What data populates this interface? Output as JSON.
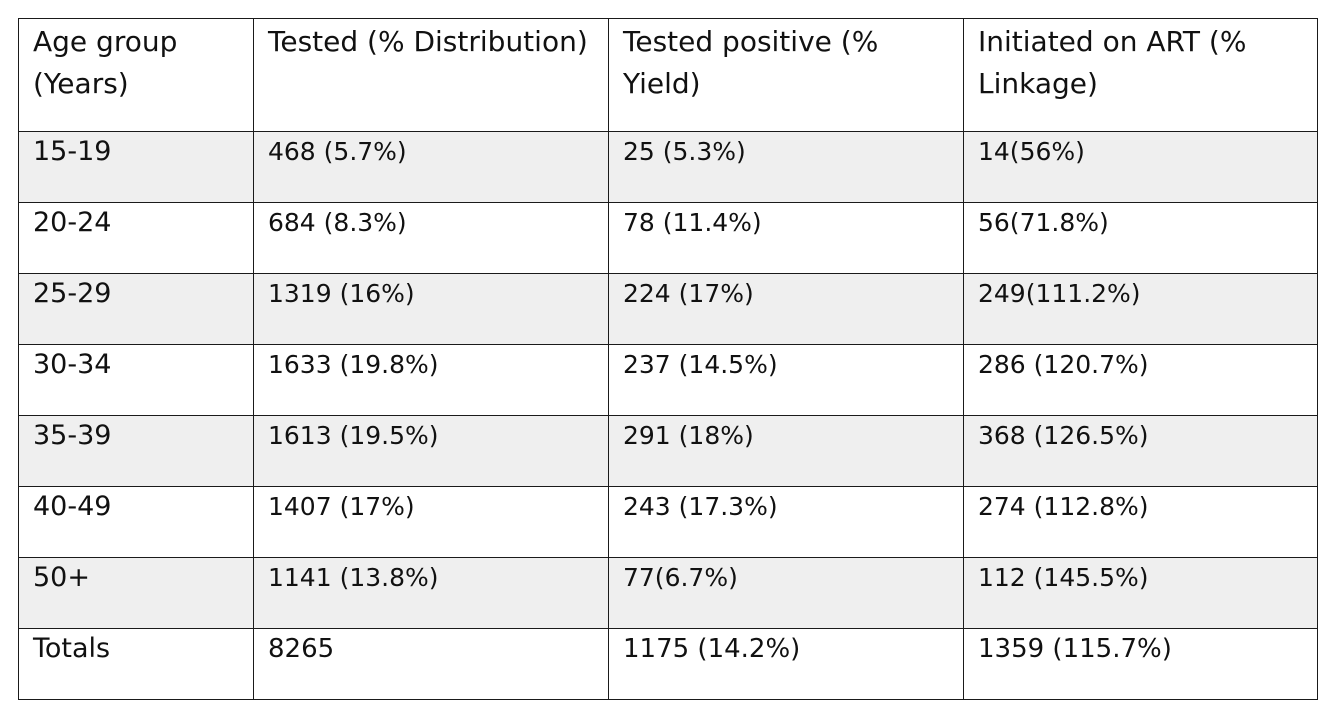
{
  "table": {
    "headers": [
      "Age group (Years)",
      "Tested (% Distribution)",
      "Tested positive (% Yield)",
      "Initiated on ART (% Linkage)"
    ],
    "rows": [
      [
        "15-19",
        "468 (5.7%)",
        "25 (5.3%)",
        "14(56%)"
      ],
      [
        "20-24",
        "684 (8.3%)",
        "78 (11.4%)",
        "56(71.8%)"
      ],
      [
        "25-29",
        "1319 (16%)",
        "224 (17%)",
        "249(111.2%)"
      ],
      [
        "30-34",
        "1633 (19.8%)",
        "237 (14.5%)",
        "286 (120.7%)"
      ],
      [
        "35-39",
        "1613 (19.5%)",
        "291 (18%)",
        "368 (126.5%)"
      ],
      [
        "40-49",
        "1407 (17%)",
        "243 (17.3%)",
        "274 (112.8%)"
      ],
      [
        "50+",
        "1141 (13.8%)",
        "77(6.7%)",
        "112 (145.5%)"
      ],
      [
        "Totals",
        "8265",
        "1175 (14.2%)",
        "1359 (115.7%)"
      ]
    ]
  }
}
